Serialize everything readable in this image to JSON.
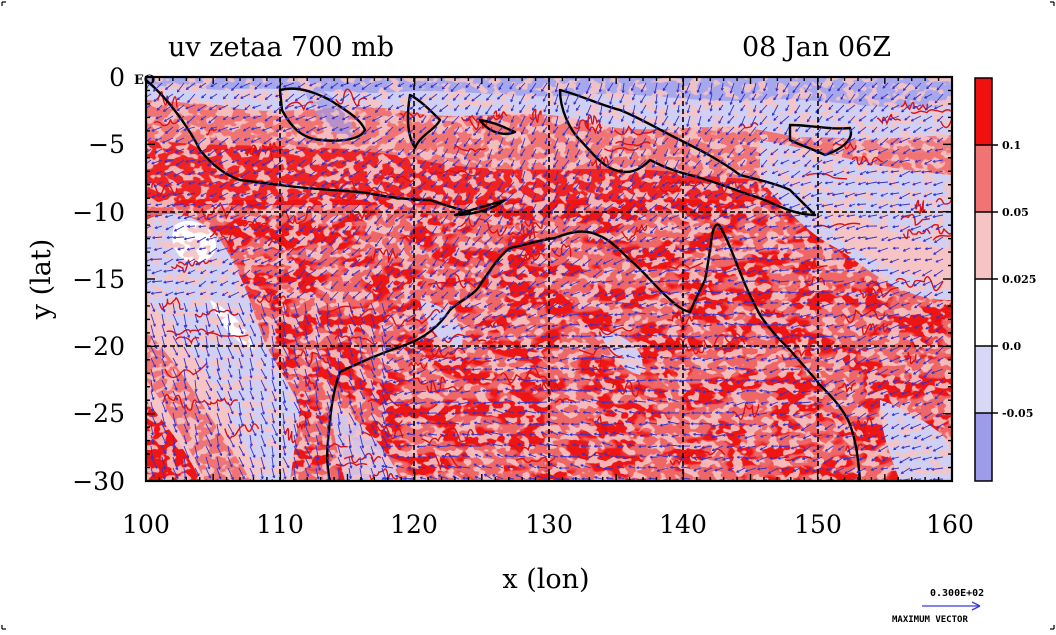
{
  "title_left": "uv zetaa 700 mb",
  "title_right": "08 Jan 06Z",
  "xlabel": "x (lon)",
  "ylabel": "y (lat)",
  "x_ticks": [
    "100",
    "110",
    "120",
    "130",
    "140",
    "150",
    "160"
  ],
  "y_ticks": [
    "0",
    "−5",
    "−10",
    "−15",
    "−20",
    "−25",
    "−30"
  ],
  "eq_label": "EQ",
  "colorbar": {
    "labels": [
      "0.1",
      "0.05",
      "0.025",
      "0.0",
      "-0.05"
    ],
    "colors": [
      "#f01010",
      "#f07474",
      "#f6c4c4",
      "#ffffff",
      "#d8d8f6",
      "#9c9cea"
    ]
  },
  "vector_key": {
    "value": "0.300E+02",
    "label": "MAXIMUM VECTOR",
    "color": "#3a3ad6"
  },
  "colors": {
    "red": "#ee1515",
    "mid_red": "#f07474",
    "light_red": "#f6c4c4",
    "light_blue": "#d0d0f4",
    "blue": "#9c9cea",
    "vector": "#3232d2",
    "coast": "#000000"
  },
  "map": {
    "lon_range": [
      100,
      160
    ],
    "lat_range": [
      -30,
      0
    ],
    "grid_interval": 10
  }
}
